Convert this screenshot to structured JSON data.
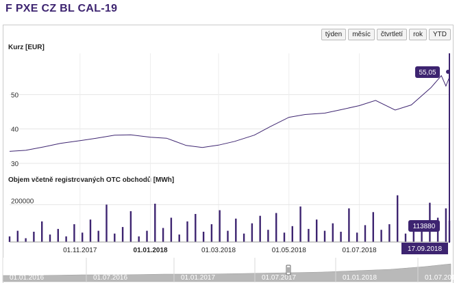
{
  "title": "F PXE CZ BL CAL-19",
  "range_buttons": [
    "týden",
    "měsíc",
    "čtvrtletí",
    "rok",
    "YTD"
  ],
  "price_panel": {
    "label": "Kurz [EUR]",
    "last_value": "55,05"
  },
  "volume_panel": {
    "label": "Objem včetně registrovaných OTC obchodů [MWh]",
    "last_value": "113880"
  },
  "x_axis": {
    "labels": [
      "01.11.2017",
      "01.01.2018",
      "01.03.2018",
      "01.05.2018",
      "01.07.2018"
    ],
    "bold_label": "01.01.2018",
    "cursor_date": "17.09.2018"
  },
  "navigator": {
    "labels": [
      "01.01.2016",
      "01.07.2016",
      "01.01.2017",
      "01.07.2017",
      "01.01.2018",
      "01.07.2018",
      "01.07.2017",
      "01.07.2018"
    ]
  },
  "colors": {
    "accent": "#3d2470",
    "grid": "#e4e4e4",
    "navigator_fill": "#b9b9b9"
  },
  "chart_data": [
    {
      "type": "line",
      "ylabel": "Kurz [EUR]",
      "ylim": [
        29,
        62
      ],
      "yticks": [
        30,
        40,
        50
      ],
      "x": [
        "01.09.2017",
        "15.09.2017",
        "01.10.2017",
        "15.10.2017",
        "01.11.2017",
        "15.11.2017",
        "01.12.2017",
        "15.12.2017",
        "01.01.2018",
        "15.01.2018",
        "01.02.2018",
        "15.02.2018",
        "01.03.2018",
        "15.03.2018",
        "01.04.2018",
        "15.04.2018",
        "01.05.2018",
        "15.05.2018",
        "01.06.2018",
        "15.06.2018",
        "01.07.2018",
        "15.07.2018",
        "01.08.2018",
        "15.08.2018",
        "01.09.2018",
        "10.09.2018",
        "14.09.2018",
        "17.09.2018"
      ],
      "values": [
        33.5,
        33.8,
        34.8,
        35.8,
        36.6,
        37.3,
        38.2,
        38.3,
        37.6,
        37.3,
        35.2,
        34.6,
        35.3,
        36.4,
        38.2,
        40.7,
        43.4,
        44.2,
        44.6,
        45.6,
        46.8,
        48.3,
        45.5,
        47.0,
        52.0,
        55.5,
        52.5,
        55.05
      ],
      "grid": true
    },
    {
      "type": "bar",
      "ylabel": "Objem včetně registrovaných OTC obchodů [MWh]",
      "ylim": [
        0,
        300000
      ],
      "yticks": [
        200000
      ],
      "x": [
        "01.09.2017",
        "08.09.2017",
        "15.09.2017",
        "22.09.2017",
        "29.09.2017",
        "06.10.2017",
        "13.10.2017",
        "20.10.2017",
        "27.10.2017",
        "03.11.2017",
        "10.11.2017",
        "17.11.2017",
        "24.11.2017",
        "01.12.2017",
        "08.12.2017",
        "15.12.2017",
        "22.12.2017",
        "29.12.2017",
        "05.01.2018",
        "12.01.2018",
        "19.01.2018",
        "26.01.2018",
        "02.02.2018",
        "09.02.2018",
        "16.02.2018",
        "23.02.2018",
        "02.03.2018",
        "09.03.2018",
        "16.03.2018",
        "23.03.2018",
        "30.03.2018",
        "06.04.2018",
        "13.04.2018",
        "20.04.2018",
        "27.04.2018",
        "04.05.2018",
        "11.05.2018",
        "18.05.2018",
        "25.05.2018",
        "01.06.2018",
        "08.06.2018",
        "15.06.2018",
        "22.06.2018",
        "29.06.2018",
        "06.07.2018",
        "13.07.2018",
        "20.07.2018",
        "27.07.2018",
        "03.08.2018",
        "10.08.2018",
        "17.08.2018",
        "24.08.2018",
        "31.08.2018",
        "07.09.2018",
        "14.09.2018",
        "17.09.2018"
      ],
      "values": [
        30000,
        60000,
        20000,
        55000,
        110000,
        40000,
        70000,
        30000,
        95000,
        50000,
        120000,
        60000,
        200000,
        45000,
        80000,
        165000,
        30000,
        60000,
        205000,
        75000,
        130000,
        40000,
        110000,
        150000,
        55000,
        95000,
        170000,
        60000,
        125000,
        45000,
        100000,
        140000,
        65000,
        155000,
        50000,
        85000,
        190000,
        70000,
        120000,
        60000,
        100000,
        55000,
        180000,
        50000,
        90000,
        160000,
        65000,
        95000,
        250000,
        45000,
        110000,
        75000,
        210000,
        130000,
        180000,
        113880
      ],
      "grid": true
    }
  ]
}
